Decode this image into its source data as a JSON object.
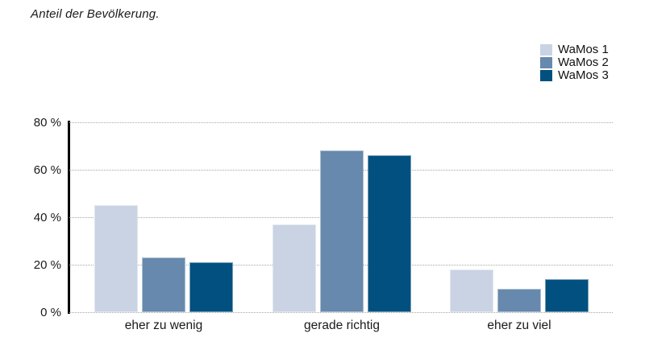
{
  "title": "Anteil der Bevölkerung.",
  "legend": {
    "position": "top-right",
    "items": [
      {
        "label": "WaMos 1",
        "color": "#c9d3e3"
      },
      {
        "label": "WaMos 2",
        "color": "#6789ad"
      },
      {
        "label": "WaMos 3",
        "color": "#02507f"
      }
    ]
  },
  "chart_data": {
    "type": "bar",
    "title": "Anteil der Bevölkerung.",
    "categories": [
      "eher zu wenig",
      "gerade richtig",
      "eher zu viel"
    ],
    "series": [
      {
        "name": "WaMos 1",
        "color": "#c9d3e3",
        "values": [
          45,
          37,
          18
        ]
      },
      {
        "name": "WaMos 2",
        "color": "#6789ad",
        "values": [
          23,
          68,
          10
        ]
      },
      {
        "name": "WaMos 3",
        "color": "#02507f",
        "values": [
          21,
          66,
          14
        ]
      }
    ],
    "xlabel": "",
    "ylabel": "",
    "ylim": [
      0,
      80
    ],
    "yticks": [
      0,
      20,
      40,
      60,
      80
    ],
    "ytick_suffix": " %",
    "grid": "horizontal-dotted",
    "legend_position": "top-right",
    "colors": {
      "axis": "#000000",
      "grid": "#a8a8a8",
      "text": "#1a1a1a"
    }
  }
}
